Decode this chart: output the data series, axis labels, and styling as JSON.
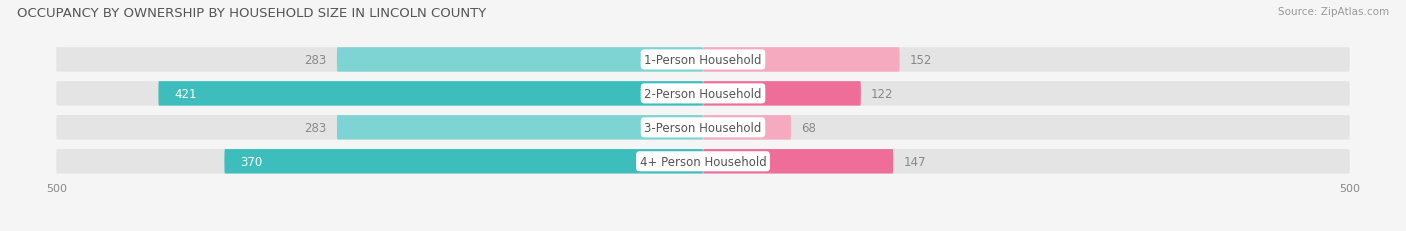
{
  "title": "OCCUPANCY BY OWNERSHIP BY HOUSEHOLD SIZE IN LINCOLN COUNTY",
  "source": "Source: ZipAtlas.com",
  "categories": [
    "1-Person Household",
    "2-Person Household",
    "3-Person Household",
    "4+ Person Household"
  ],
  "owner_values": [
    283,
    421,
    283,
    370
  ],
  "renter_values": [
    152,
    122,
    68,
    147
  ],
  "owner_color_bright": "#3DBDBC",
  "owner_color_dim": "#7ED4D3",
  "renter_color_bright": "#EE6E99",
  "renter_color_dim": "#F5AABF",
  "label_color_outside": "#888888",
  "axis_max": 500,
  "bar_height": 0.72,
  "background_color": "#f5f5f5",
  "bar_bg_color": "#e4e4e4",
  "center_label_color": "#555555",
  "title_fontsize": 9.5,
  "bar_fontsize": 8.5,
  "axis_fontsize": 8,
  "legend_fontsize": 8.5,
  "bright_rows": [
    1,
    3
  ],
  "dim_rows": [
    0,
    2
  ]
}
